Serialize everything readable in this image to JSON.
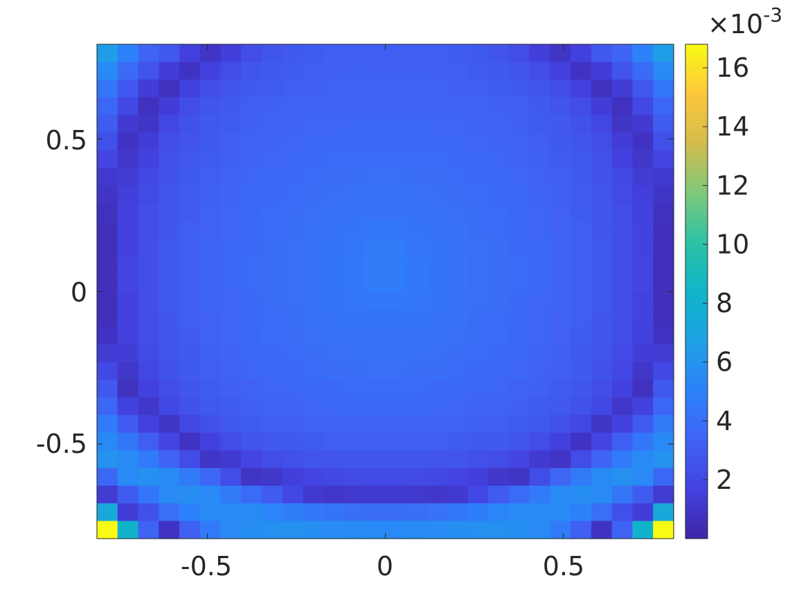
{
  "chart_data": {
    "type": "heatmap",
    "title": "",
    "xlabel": "",
    "ylabel": "",
    "grid_size": [
      28,
      28
    ],
    "xlim": [
      -0.81,
      0.81
    ],
    "ylim": [
      -0.81,
      0.81
    ],
    "x_ticks": [
      -0.5,
      0,
      0.5
    ],
    "x_tick_labels": [
      "-0.5",
      "0",
      "0.5"
    ],
    "y_ticks": [
      0.5,
      0,
      -0.5
    ],
    "y_tick_labels": [
      "0.5",
      "0",
      "-0.5"
    ],
    "colorbar": {
      "min": 0.0,
      "max": 16.8,
      "ticks": [
        2,
        4,
        6,
        8,
        10,
        12,
        14,
        16
      ],
      "tick_labels": [
        "2",
        "4",
        "6",
        "8",
        "10",
        "12",
        "14",
        "16"
      ],
      "exponent_label": "×10",
      "exponent_power": "-3",
      "colormap": "parula"
    },
    "cell_values_note": "",
    "values": [
      [
        6.5,
        5.0,
        3.4,
        2.8,
        1.6,
        0.9,
        1.5,
        2.2,
        2.6,
        2.9,
        3.0,
        3.1,
        3.1,
        3.1,
        3.1,
        3.1,
        3.1,
        3.0,
        2.9,
        2.6,
        2.2,
        1.5,
        0.9,
        1.6,
        2.8,
        3.4,
        5.0,
        6.5
      ],
      [
        5.5,
        3.8,
        2.6,
        1.4,
        0.8,
        1.6,
        2.2,
        2.6,
        2.9,
        3.0,
        3.1,
        3.2,
        3.2,
        3.2,
        3.2,
        3.2,
        3.2,
        3.1,
        3.0,
        2.9,
        2.6,
        2.2,
        1.6,
        0.8,
        1.4,
        2.6,
        3.8,
        5.5
      ],
      [
        4.4,
        2.8,
        1.4,
        0.7,
        1.6,
        2.3,
        2.6,
        2.9,
        3.0,
        3.1,
        3.2,
        3.3,
        3.3,
        3.3,
        3.3,
        3.3,
        3.3,
        3.2,
        3.1,
        3.0,
        2.9,
        2.6,
        2.3,
        1.6,
        0.7,
        1.4,
        2.8,
        4.4
      ],
      [
        3.6,
        2.0,
        0.7,
        1.4,
        2.2,
        2.6,
        2.9,
        3.1,
        3.2,
        3.3,
        3.4,
        3.4,
        3.4,
        3.4,
        3.4,
        3.4,
        3.4,
        3.4,
        3.3,
        3.2,
        3.1,
        2.9,
        2.6,
        2.2,
        1.4,
        0.7,
        2.0,
        3.6
      ],
      [
        3.0,
        1.2,
        0.9,
        1.9,
        2.5,
        2.8,
        3.0,
        3.2,
        3.3,
        3.4,
        3.5,
        3.5,
        3.6,
        3.6,
        3.6,
        3.6,
        3.5,
        3.5,
        3.4,
        3.3,
        3.2,
        3.0,
        2.8,
        2.5,
        1.9,
        0.9,
        1.2,
        3.0
      ],
      [
        2.4,
        0.8,
        1.4,
        2.2,
        2.6,
        2.9,
        3.1,
        3.3,
        3.4,
        3.5,
        3.6,
        3.6,
        3.7,
        3.7,
        3.7,
        3.7,
        3.6,
        3.6,
        3.5,
        3.4,
        3.3,
        3.1,
        2.9,
        2.6,
        2.2,
        1.4,
        0.8,
        2.4
      ],
      [
        1.8,
        1.0,
        1.7,
        2.4,
        2.8,
        3.0,
        3.2,
        3.4,
        3.5,
        3.6,
        3.7,
        3.8,
        3.8,
        3.8,
        3.8,
        3.8,
        3.8,
        3.7,
        3.6,
        3.5,
        3.4,
        3.2,
        3.0,
        2.8,
        2.4,
        1.7,
        1.0,
        1.8
      ],
      [
        1.2,
        1.3,
        2.0,
        2.5,
        2.9,
        3.1,
        3.3,
        3.5,
        3.6,
        3.7,
        3.8,
        3.9,
        3.9,
        4.0,
        4.0,
        3.9,
        3.9,
        3.8,
        3.7,
        3.6,
        3.5,
        3.3,
        3.1,
        2.9,
        2.5,
        2.0,
        1.3,
        1.2
      ],
      [
        0.9,
        1.5,
        2.1,
        2.6,
        3.0,
        3.2,
        3.4,
        3.6,
        3.7,
        3.8,
        3.9,
        4.0,
        4.1,
        4.1,
        4.1,
        4.1,
        4.0,
        3.9,
        3.8,
        3.7,
        3.6,
        3.4,
        3.2,
        3.0,
        2.6,
        2.1,
        1.5,
        0.9
      ],
      [
        0.7,
        1.6,
        2.2,
        2.7,
        3.0,
        3.3,
        3.5,
        3.6,
        3.8,
        3.9,
        4.0,
        4.1,
        4.2,
        4.2,
        4.2,
        4.2,
        4.1,
        4.0,
        3.9,
        3.8,
        3.6,
        3.5,
        3.3,
        3.0,
        2.7,
        2.2,
        1.6,
        0.7
      ],
      [
        0.6,
        1.7,
        2.3,
        2.7,
        3.1,
        3.3,
        3.5,
        3.7,
        3.8,
        3.9,
        4.1,
        4.2,
        4.3,
        4.4,
        4.4,
        4.3,
        4.2,
        4.1,
        3.9,
        3.8,
        3.7,
        3.5,
        3.3,
        3.1,
        2.7,
        2.3,
        1.7,
        0.6
      ],
      [
        0.6,
        1.7,
        2.3,
        2.8,
        3.1,
        3.4,
        3.6,
        3.7,
        3.9,
        4.0,
        4.1,
        4.3,
        4.4,
        4.6,
        4.6,
        4.4,
        4.3,
        4.1,
        4.0,
        3.9,
        3.7,
        3.6,
        3.4,
        3.1,
        2.8,
        2.3,
        1.7,
        0.6
      ],
      [
        0.6,
        1.8,
        2.3,
        2.8,
        3.1,
        3.4,
        3.6,
        3.8,
        3.9,
        4.0,
        4.2,
        4.3,
        4.5,
        4.7,
        4.7,
        4.5,
        4.3,
        4.2,
        4.0,
        3.9,
        3.8,
        3.6,
        3.4,
        3.1,
        2.8,
        2.3,
        1.8,
        0.6
      ],
      [
        0.6,
        1.8,
        2.3,
        2.8,
        3.1,
        3.4,
        3.6,
        3.8,
        3.9,
        4.0,
        4.2,
        4.3,
        4.5,
        4.7,
        4.7,
        4.5,
        4.3,
        4.2,
        4.0,
        3.9,
        3.8,
        3.6,
        3.4,
        3.1,
        2.8,
        2.3,
        1.8,
        0.6
      ],
      [
        0.6,
        1.7,
        2.3,
        2.8,
        3.1,
        3.4,
        3.5,
        3.7,
        3.9,
        4.0,
        4.1,
        4.3,
        4.4,
        4.5,
        4.5,
        4.4,
        4.3,
        4.1,
        4.0,
        3.9,
        3.7,
        3.5,
        3.4,
        3.1,
        2.8,
        2.3,
        1.7,
        0.6
      ],
      [
        0.6,
        1.7,
        2.3,
        2.7,
        3.1,
        3.3,
        3.5,
        3.7,
        3.8,
        3.9,
        4.1,
        4.2,
        4.3,
        4.3,
        4.3,
        4.3,
        4.2,
        4.1,
        3.9,
        3.8,
        3.7,
        3.5,
        3.3,
        3.1,
        2.7,
        2.3,
        1.7,
        0.6
      ],
      [
        0.8,
        1.6,
        2.2,
        2.7,
        3.0,
        3.3,
        3.5,
        3.6,
        3.8,
        3.9,
        4.0,
        4.1,
        4.2,
        4.2,
        4.2,
        4.2,
        4.1,
        4.0,
        3.9,
        3.8,
        3.6,
        3.5,
        3.3,
        3.0,
        2.7,
        2.2,
        1.6,
        0.8
      ],
      [
        1.3,
        1.4,
        2.1,
        2.6,
        2.9,
        3.2,
        3.4,
        3.6,
        3.7,
        3.8,
        3.9,
        4.0,
        4.1,
        4.1,
        4.1,
        4.1,
        4.0,
        3.9,
        3.8,
        3.7,
        3.6,
        3.4,
        3.2,
        2.9,
        2.6,
        2.1,
        1.4,
        1.3
      ],
      [
        2.0,
        1.0,
        1.9,
        2.5,
        2.9,
        3.1,
        3.3,
        3.5,
        3.6,
        3.7,
        3.8,
        3.9,
        3.9,
        4.0,
        4.0,
        3.9,
        3.9,
        3.8,
        3.7,
        3.6,
        3.5,
        3.3,
        3.1,
        2.9,
        2.5,
        1.9,
        1.0,
        2.0
      ],
      [
        2.8,
        0.7,
        1.6,
        2.3,
        2.7,
        3.0,
        3.2,
        3.3,
        3.5,
        3.6,
        3.7,
        3.7,
        3.8,
        3.8,
        3.8,
        3.8,
        3.7,
        3.7,
        3.6,
        3.5,
        3.3,
        3.2,
        3.0,
        2.7,
        2.3,
        1.6,
        0.7,
        2.8
      ],
      [
        3.6,
        1.6,
        1.0,
        2.0,
        2.5,
        2.8,
        3.0,
        3.2,
        3.3,
        3.4,
        3.5,
        3.6,
        3.6,
        3.6,
        3.6,
        3.6,
        3.6,
        3.5,
        3.4,
        3.3,
        3.2,
        3.0,
        2.8,
        2.5,
        2.0,
        1.0,
        1.6,
        3.6
      ],
      [
        4.6,
        3.0,
        1.6,
        0.9,
        1.9,
        2.4,
        2.8,
        3.0,
        3.1,
        3.2,
        3.3,
        3.3,
        3.4,
        3.4,
        3.4,
        3.4,
        3.3,
        3.3,
        3.2,
        3.1,
        3.0,
        2.8,
        2.4,
        1.9,
        0.9,
        1.6,
        3.0,
        4.6
      ],
      [
        5.4,
        4.4,
        3.1,
        1.8,
        0.8,
        1.6,
        2.2,
        2.6,
        2.8,
        2.9,
        3.0,
        3.1,
        3.1,
        3.1,
        3.1,
        3.1,
        3.1,
        3.0,
        2.9,
        2.8,
        2.6,
        2.2,
        1.6,
        0.8,
        1.8,
        3.1,
        4.4,
        5.4
      ],
      [
        5.9,
        5.4,
        4.6,
        3.4,
        2.2,
        0.9,
        1.2,
        1.8,
        2.2,
        2.4,
        2.6,
        2.6,
        2.7,
        2.7,
        2.7,
        2.7,
        2.6,
        2.6,
        2.4,
        2.2,
        1.8,
        1.2,
        0.9,
        2.2,
        3.4,
        4.6,
        5.4,
        5.9
      ],
      [
        3.6,
        5.4,
        5.8,
        5.5,
        4.6,
        3.5,
        2.2,
        0.9,
        1.0,
        1.5,
        1.8,
        2.0,
        2.1,
        2.1,
        2.1,
        2.1,
        2.0,
        1.8,
        1.5,
        1.0,
        0.9,
        2.2,
        3.5,
        4.6,
        5.5,
        5.8,
        5.4,
        3.6
      ],
      [
        1.3,
        3.0,
        4.4,
        5.4,
        5.7,
        5.4,
        4.6,
        3.8,
        3.0,
        2.0,
        1.2,
        1.0,
        1.1,
        1.2,
        1.2,
        1.1,
        1.0,
        1.2,
        2.0,
        3.0,
        3.8,
        4.6,
        5.4,
        5.7,
        5.4,
        4.4,
        3.0,
        1.3
      ],
      [
        7.4,
        1.4,
        2.4,
        4.0,
        5.0,
        5.5,
        5.6,
        5.5,
        5.2,
        4.8,
        4.5,
        4.2,
        4.0,
        3.9,
        3.9,
        4.0,
        4.2,
        4.5,
        4.8,
        5.2,
        5.5,
        5.6,
        5.5,
        5.0,
        4.0,
        2.4,
        1.4,
        7.4
      ],
      [
        16.8,
        8.2,
        3.4,
        0.8,
        3.2,
        4.6,
        5.4,
        5.7,
        5.8,
        5.8,
        5.7,
        5.6,
        5.5,
        5.5,
        5.5,
        5.5,
        5.6,
        5.7,
        5.8,
        5.8,
        5.7,
        5.4,
        4.6,
        3.2,
        0.8,
        3.4,
        8.2,
        16.8
      ]
    ]
  }
}
